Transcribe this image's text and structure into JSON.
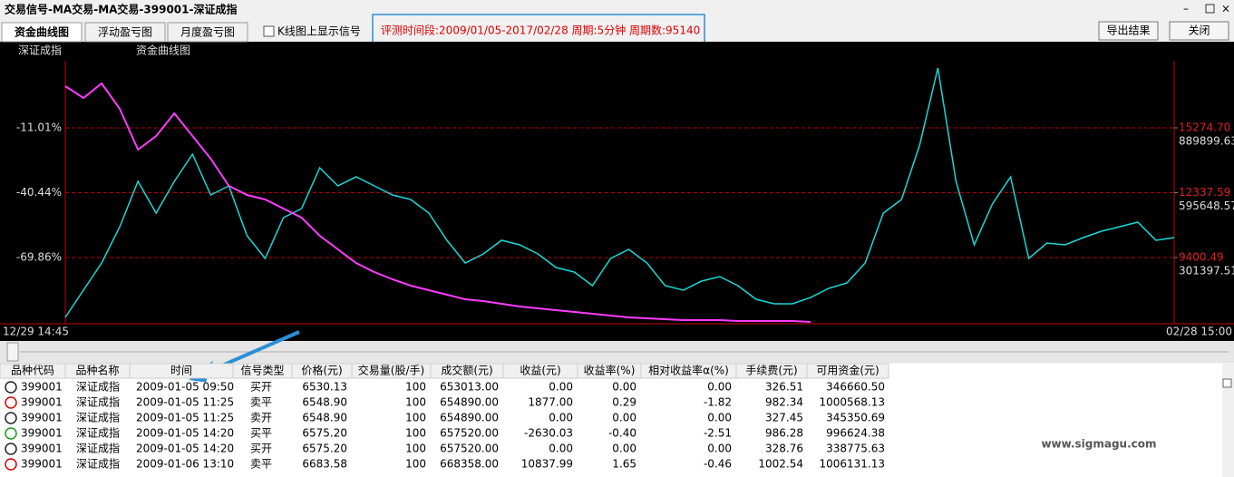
{
  "window": {
    "title": "交易信号-MA交易-MA交易-399001-深证成指",
    "tabs": [
      "资金曲线图",
      "浮动盈亏图",
      "月度盈亏图"
    ],
    "checkbox": "K线图上显示信号",
    "info": "评测时间段:2009/01/05-2017/02/28  周期:5分钟  周期数:95140",
    "buttons": [
      "导出结果",
      "关闭"
    ]
  },
  "chart_data": {
    "type": "line",
    "categories": [
      "12/29 14:45",
      null,
      null,
      null,
      null,
      null,
      null,
      null,
      null,
      null,
      null,
      null,
      null,
      null,
      null,
      null,
      null,
      null,
      null,
      null,
      null,
      null,
      null,
      null,
      null,
      null,
      null,
      null,
      null,
      null,
      null,
      null,
      null,
      null,
      null,
      null,
      null,
      null,
      null,
      null,
      null,
      null,
      null,
      null,
      null,
      null,
      null,
      null,
      null,
      null,
      null,
      null,
      null,
      null,
      null,
      null,
      null,
      null,
      null,
      null,
      null,
      "02/28 15:00"
    ],
    "ylim": [
      -99.91,
      19.46
    ],
    "yticks": [
      {
        "value": -11.01,
        "label": "-11.01%"
      },
      {
        "value": -40.44,
        "label": "-40.44%"
      },
      {
        "value": -69.86,
        "label": "-69.86%"
      }
    ],
    "y2lim": [
      6401,
      18315
    ],
    "y2ticks": [
      {
        "value": 15274.7,
        "label": "15274.70"
      },
      {
        "value": 12337.59,
        "label": "12337.59"
      },
      {
        "value": 9400.49,
        "label": "9400.49"
      }
    ],
    "y3lim": [
      960,
      1194439
    ],
    "y3ticks": [
      889899.63,
      595648.57,
      301397.51
    ],
    "grid": true,
    "series": [
      {
        "name": "深证成指",
        "color": "#19d8d8",
        "axis": "y2",
        "values": [
          6689,
          7921,
          9154,
          10797,
          12851,
          11413,
          12851,
          14083,
          12235,
          12646,
          10386,
          9359,
          11208,
          11619,
          13467,
          12646,
          13057,
          12646,
          12235,
          12030,
          11413,
          10181,
          9154,
          9565,
          10181,
          9976,
          9565,
          8949,
          8743,
          8127,
          9359,
          9770,
          9154,
          8127,
          7921,
          8332,
          8538,
          8127,
          7511,
          7305,
          7305,
          7593,
          8004,
          8250,
          9154,
          11413,
          12030,
          14494,
          17986,
          12851,
          9976,
          11824,
          13057,
          9359,
          10057,
          9976,
          10304,
          10591,
          10797,
          11002,
          10181,
          10304
        ]
      },
      {
        "name": "资金曲线图",
        "color": "#ff3cff",
        "axis": "y3",
        "values": [
          1079169,
          1025708,
          1091555,
          976324,
          791131,
          852862,
          955747,
          852862,
          749977,
          626515,
          585361,
          564784,
          523630,
          482476,
          400168,
          338437,
          276706,
          235551,
          202628,
          173820,
          153243,
          132667,
          112089,
          103858,
          91513,
          79166,
          70935,
          62704,
          54473,
          46243,
          38012,
          29781,
          25666,
          21550,
          17435,
          17435,
          17435,
          13319,
          13319,
          13319,
          13319,
          9204,
          null,
          null,
          null,
          null,
          null,
          null,
          null,
          null,
          null,
          null,
          null,
          null,
          null,
          null,
          null,
          null,
          null,
          null,
          null,
          null
        ]
      }
    ]
  },
  "table": {
    "headers": [
      "品种代码",
      "品种名称",
      "时间",
      "信号类型",
      "价格(元)",
      "交易量(股/手)",
      "成交额(元)",
      "收益(元)",
      "收益率(%)",
      "相对收益率α(%)",
      "手续费(元)",
      "可用资金(元)"
    ],
    "rows": [
      [
        "399001",
        "深证成指",
        "2009-01-05 09:50",
        "买开",
        "6530.13",
        "100",
        "653013.00",
        "0.00",
        "0.00",
        "0.00",
        "326.51",
        "346660.50"
      ],
      [
        "399001",
        "深证成指",
        "2009-01-05 11:25",
        "卖平",
        "6548.90",
        "100",
        "654890.00",
        "1877.00",
        "0.29",
        "-1.82",
        "982.34",
        "1000568.13"
      ],
      [
        "399001",
        "深证成指",
        "2009-01-05 11:25",
        "卖开",
        "6548.90",
        "100",
        "654890.00",
        "0.00",
        "0.00",
        "0.00",
        "327.45",
        "345350.69"
      ],
      [
        "399001",
        "深证成指",
        "2009-01-05 14:20",
        "买平",
        "6575.20",
        "100",
        "657520.00",
        "-2630.03",
        "-0.40",
        "-2.51",
        "986.28",
        "996624.38"
      ],
      [
        "399001",
        "深证成指",
        "2009-01-05 14:20",
        "买开",
        "6575.20",
        "100",
        "657520.00",
        "0.00",
        "0.00",
        "0.00",
        "328.76",
        "338775.63"
      ],
      [
        "399001",
        "深证成指",
        "2009-01-06 13:10",
        "卖平",
        "6683.58",
        "100",
        "668358.00",
        "10837.99",
        "1.65",
        "-0.46",
        "1002.54",
        "1006131.13"
      ]
    ]
  },
  "watermark": "www.sigmagu.com"
}
